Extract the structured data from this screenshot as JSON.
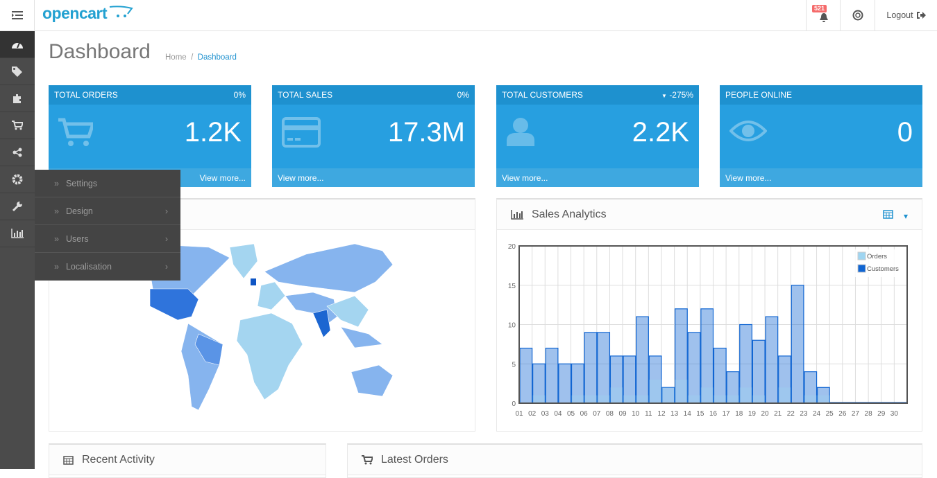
{
  "header": {
    "logo": "opencart",
    "notification_count": "521",
    "logout_label": "Logout"
  },
  "sidebar": {
    "items": [
      "dashboard-icon",
      "tags-icon",
      "puzzle-icon",
      "cart-icon",
      "share-icon",
      "gear-icon",
      "wrench-icon",
      "bar-chart-icon"
    ]
  },
  "flyout": {
    "items": [
      {
        "label": "Settings",
        "has_submenu": false
      },
      {
        "label": "Design",
        "has_submenu": true
      },
      {
        "label": "Users",
        "has_submenu": true
      },
      {
        "label": "Localisation",
        "has_submenu": true
      }
    ]
  },
  "page": {
    "title": "Dashboard",
    "breadcrumb": [
      "Home",
      "Dashboard"
    ]
  },
  "tiles": [
    {
      "title": "TOTAL ORDERS",
      "change": "0%",
      "value": "1.2K",
      "footer": "View more...",
      "icon": "cart-icon"
    },
    {
      "title": "TOTAL SALES",
      "change": "0%",
      "value": "17.3M",
      "footer": "View more...",
      "icon": "credit-card-icon"
    },
    {
      "title": "TOTAL CUSTOMERS",
      "change": "-275%",
      "value": "2.2K",
      "footer": "View more...",
      "icon": "user-icon"
    },
    {
      "title": "PEOPLE ONLINE",
      "change": "",
      "value": "0",
      "footer": "View more...",
      "icon": "eye-icon"
    }
  ],
  "colors": {
    "tile_header": "#1e91cf",
    "tile_body": "#279fe0",
    "tile_footer": "#3ea8e0",
    "orders": "#9fd5f1",
    "customers": "#1065d2"
  },
  "sales_panel": {
    "title": "Sales Analytics"
  },
  "recent_activity": {
    "title": "Recent Activity"
  },
  "latest_orders": {
    "title": "Latest Orders"
  },
  "chart_data": {
    "type": "bar",
    "categories": [
      "01",
      "02",
      "03",
      "04",
      "05",
      "06",
      "07",
      "08",
      "09",
      "10",
      "11",
      "12",
      "13",
      "14",
      "15",
      "16",
      "17",
      "18",
      "19",
      "20",
      "21",
      "22",
      "23",
      "24",
      "25",
      "26",
      "27",
      "28",
      "29",
      "30"
    ],
    "series": [
      {
        "name": "Orders",
        "values": [
          0,
          1,
          0,
          0,
          1,
          1,
          1,
          2,
          1,
          1,
          3,
          2,
          3,
          1,
          2,
          1,
          1,
          2,
          1,
          0,
          2,
          0,
          1,
          1,
          0,
          0,
          0,
          0,
          0,
          0
        ]
      },
      {
        "name": "Customers",
        "values": [
          7,
          5,
          7,
          5,
          5,
          9,
          9,
          6,
          6,
          11,
          6,
          2,
          12,
          9,
          12,
          7,
          4,
          10,
          8,
          11,
          6,
          15,
          4,
          2,
          0,
          0,
          0,
          0,
          0,
          0
        ]
      }
    ],
    "yticks": [
      0,
      5,
      10,
      15,
      20
    ],
    "ylim": [
      0,
      20
    ],
    "grid": true,
    "legend": "top-right"
  }
}
